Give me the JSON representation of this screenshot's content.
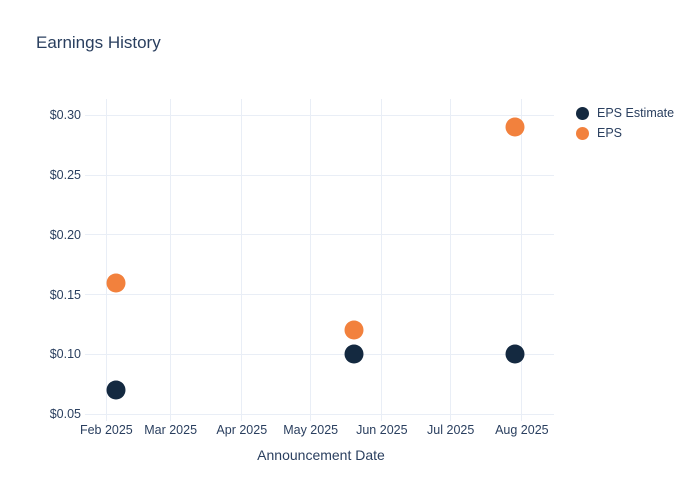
{
  "chart_data": {
    "type": "scatter",
    "title": "Earnings History",
    "xlabel": "Announcement Date",
    "ylabel": "",
    "grid": true,
    "legend_position": "right",
    "marker_size": 19,
    "colors": {
      "text": "#2a3f5f",
      "grid": "#e9eef6",
      "background": "#ffffff"
    },
    "x_axis": {
      "range": [
        "2025-01-24",
        "2025-08-15"
      ],
      "ticks": [
        {
          "label": "Feb 2025",
          "date": "2025-02-01"
        },
        {
          "label": "Mar 2025",
          "date": "2025-03-01"
        },
        {
          "label": "Apr 2025",
          "date": "2025-04-01"
        },
        {
          "label": "May 2025",
          "date": "2025-05-01"
        },
        {
          "label": "Jun 2025",
          "date": "2025-06-01"
        },
        {
          "label": "Jul 2025",
          "date": "2025-07-01"
        },
        {
          "label": "Aug 2025",
          "date": "2025-08-01"
        }
      ]
    },
    "y_axis": {
      "range": [
        0.0492,
        0.3138
      ],
      "ticks": [
        {
          "label": "$0.05",
          "value": 0.05
        },
        {
          "label": "$0.10",
          "value": 0.1
        },
        {
          "label": "$0.15",
          "value": 0.15
        },
        {
          "label": "$0.20",
          "value": 0.2
        },
        {
          "label": "$0.25",
          "value": 0.25
        },
        {
          "label": "$0.30",
          "value": 0.3
        }
      ]
    },
    "series": [
      {
        "name": "EPS Estimate",
        "color": "#142940",
        "points": [
          {
            "x": "2025-02-05",
            "y": 0.07
          },
          {
            "x": "2025-05-20",
            "y": 0.1
          },
          {
            "x": "2025-07-29",
            "y": 0.1
          }
        ]
      },
      {
        "name": "EPS",
        "color": "#f2813d",
        "points": [
          {
            "x": "2025-02-05",
            "y": 0.16
          },
          {
            "x": "2025-05-20",
            "y": 0.12
          },
          {
            "x": "2025-07-29",
            "y": 0.29
          }
        ]
      }
    ]
  }
}
